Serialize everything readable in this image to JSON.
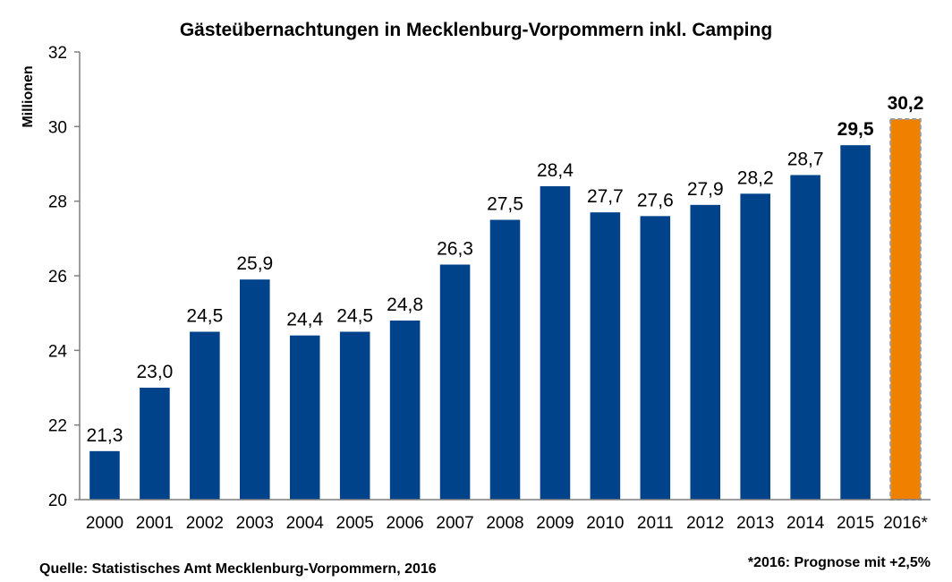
{
  "chart_data": {
    "type": "bar",
    "title": "Gästeübernachtungen in Mecklenburg-Vorpommern inkl. Camping",
    "ylabel": "Millionen",
    "xlabel": "",
    "ylim": [
      20,
      32
    ],
    "yticks": [
      20,
      22,
      24,
      26,
      28,
      30,
      32
    ],
    "ytick_labels": [
      "20",
      "22",
      "24",
      "26",
      "28",
      "30",
      "32"
    ],
    "grid": false,
    "legend": "none",
    "categories": [
      "2000",
      "2001",
      "2002",
      "2003",
      "2004",
      "2005",
      "2006",
      "2007",
      "2008",
      "2009",
      "2010",
      "2011",
      "2012",
      "2013",
      "2014",
      "2015",
      "2016*"
    ],
    "values": [
      21.3,
      23.0,
      24.5,
      25.9,
      24.4,
      24.5,
      24.8,
      26.3,
      27.5,
      28.4,
      27.7,
      27.6,
      27.9,
      28.2,
      28.7,
      29.5,
      30.2
    ],
    "value_labels": [
      "21,3",
      "23,0",
      "24,5",
      "25,9",
      "24,4",
      "24,5",
      "24,8",
      "26,3",
      "27,5",
      "28,4",
      "27,7",
      "27,6",
      "27,9",
      "28,2",
      "28,7",
      "29,5",
      "30,2"
    ],
    "bold_labels": [
      false,
      false,
      false,
      false,
      false,
      false,
      false,
      false,
      false,
      false,
      false,
      false,
      false,
      false,
      false,
      true,
      true
    ],
    "forecast_index": 16,
    "colors": {
      "bar": "#00438a",
      "forecast": "#f08000",
      "forecast_border": "#9a9a9a",
      "axis": "#7f7f7f",
      "text": "#000000"
    }
  },
  "source_note": "Quelle: Statistisches Amt Mecklenburg-Vorpommern, 2016",
  "forecast_note": "*2016: Prognose mit +2,5%"
}
